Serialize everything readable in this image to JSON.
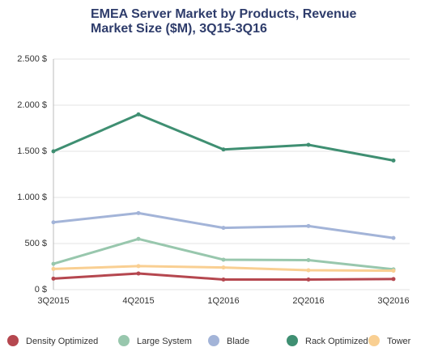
{
  "chart_data": {
    "type": "line",
    "title": "EMEA Server Market by Products, Revenue Market Size ($M), 3Q15-3Q16",
    "categories": [
      "3Q2015",
      "4Q2015",
      "1Q2016",
      "2Q2016",
      "3Q2016"
    ],
    "series": [
      {
        "name": "Density Optimized",
        "color": "#b5474f",
        "values": [
          120,
          175,
          110,
          110,
          115
        ]
      },
      {
        "name": "Large System",
        "color": "#98c7ad",
        "values": [
          280,
          550,
          325,
          320,
          220
        ]
      },
      {
        "name": "Blade",
        "color": "#a3b4d8",
        "values": [
          730,
          830,
          670,
          690,
          560
        ]
      },
      {
        "name": "Rack Optimized",
        "color": "#3f8f72",
        "values": [
          1500,
          1900,
          1520,
          1570,
          1400
        ]
      },
      {
        "name": "Tower",
        "color": "#f9cf92",
        "values": [
          225,
          255,
          240,
          210,
          205
        ]
      }
    ],
    "ylim": [
      0,
      2500
    ],
    "yticks": [
      {
        "value": 0,
        "label": "0 $"
      },
      {
        "value": 500,
        "label": "500 $"
      },
      {
        "value": 1000,
        "label": "1.000 $"
      },
      {
        "value": 1500,
        "label": "1.500 $"
      },
      {
        "value": 2000,
        "label": "2.000 $"
      },
      {
        "value": 2500,
        "label": "2.500 $"
      }
    ],
    "grid": true
  }
}
